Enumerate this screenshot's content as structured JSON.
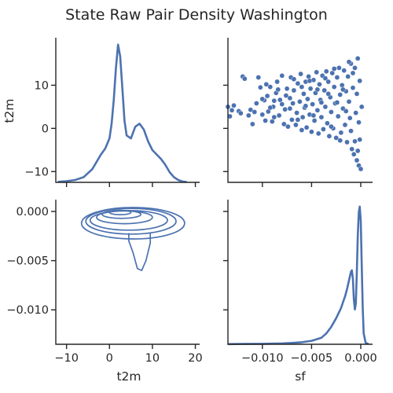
{
  "chart_data": {
    "type": "pairplot",
    "title": "State Raw Pair Density Washington",
    "variables": [
      "t2m",
      "sf"
    ],
    "color": "#4c72b0",
    "x_ticks": {
      "t2m": {
        "values": [
          -10,
          0,
          10,
          20
        ],
        "labels": [
          "−10",
          "0",
          "10",
          "20"
        ]
      },
      "sf": {
        "values": [
          -0.01,
          -0.005,
          0.0
        ],
        "labels": [
          "−0.010",
          "−0.005",
          "0.000"
        ]
      }
    },
    "y_ticks": {
      "t2m": {
        "values": [
          -10,
          0,
          10
        ],
        "labels": [
          "−10",
          "0",
          "10"
        ]
      },
      "sf": {
        "values": [
          -0.01,
          -0.005,
          0.0
        ],
        "labels": [
          "−0.010",
          "−0.005",
          "0.000"
        ]
      }
    },
    "ranges": {
      "t2m": [
        -12.5,
        21.0
      ],
      "sf": [
        -0.0135,
        0.0012
      ]
    },
    "diag_t2m_kde": {
      "x": [
        -12,
        -10,
        -8,
        -6,
        -4,
        -3,
        -2,
        -1,
        0,
        0.5,
        1,
        1.5,
        2,
        2.5,
        3,
        3.5,
        4,
        5,
        6,
        7,
        8,
        9,
        10,
        11,
        12,
        13,
        14,
        15,
        16,
        17,
        18
      ],
      "density": [
        0.002,
        0.004,
        0.008,
        0.018,
        0.045,
        0.07,
        0.095,
        0.115,
        0.15,
        0.2,
        0.28,
        0.39,
        0.47,
        0.43,
        0.32,
        0.21,
        0.16,
        0.15,
        0.19,
        0.2,
        0.18,
        0.14,
        0.11,
        0.095,
        0.08,
        0.06,
        0.035,
        0.018,
        0.008,
        0.003,
        0.001
      ]
    },
    "diag_sf_kde": {
      "x": [
        -0.0135,
        -0.012,
        -0.01,
        -0.008,
        -0.007,
        -0.006,
        -0.005,
        -0.004,
        -0.0035,
        -0.003,
        -0.0025,
        -0.002,
        -0.0018,
        -0.0016,
        -0.0014,
        -0.0012,
        -0.001,
        -0.0009,
        -0.0008,
        -0.0007,
        -0.0006,
        -0.0005,
        -0.0004,
        -0.0003,
        -0.0002,
        -0.0001,
        0.0,
        0.0001,
        0.0002,
        0.0003,
        0.0005,
        0.0008
      ],
      "density": [
        2,
        4,
        7,
        12,
        18,
        28,
        48,
        90,
        150,
        240,
        360,
        500,
        580,
        660,
        760,
        880,
        1000,
        1020,
        900,
        620,
        480,
        560,
        1000,
        1500,
        1820,
        1900,
        1700,
        1100,
        500,
        150,
        20,
        2
      ]
    },
    "scatter_sf_vs_t2m": {
      "points": [
        [
          -0.0135,
          5.0
        ],
        [
          -0.0133,
          2.8
        ],
        [
          -0.0131,
          4.2
        ],
        [
          -0.0129,
          5.3
        ],
        [
          -0.0124,
          4.0
        ],
        [
          -0.0122,
          3.5
        ],
        [
          -0.012,
          12.0
        ],
        [
          -0.0118,
          11.5
        ],
        [
          -0.0114,
          3.0
        ],
        [
          -0.0112,
          4.3
        ],
        [
          -0.011,
          1.0
        ],
        [
          -0.0108,
          3.8
        ],
        [
          -0.0106,
          5.8
        ],
        [
          -0.0104,
          11.8
        ],
        [
          -0.0102,
          9.5
        ],
        [
          -0.01,
          3.2
        ],
        [
          -0.0098,
          6.5
        ],
        [
          -0.0097,
          1.8
        ],
        [
          -0.0095,
          7.5
        ],
        [
          -0.0094,
          3.9
        ],
        [
          -0.0092,
          9.6
        ],
        [
          -0.009,
          1.6
        ],
        [
          -0.0089,
          5.0
        ],
        [
          -0.0088,
          2.6
        ],
        [
          -0.0086,
          8.2
        ],
        [
          -0.0085,
          10.8
        ],
        [
          -0.0083,
          3.0
        ],
        [
          -0.0082,
          6.6
        ],
        [
          -0.008,
          12.2
        ],
        [
          -0.0078,
          1.0
        ],
        [
          -0.0077,
          4.4
        ],
        [
          -0.0075,
          9.2
        ],
        [
          -0.0074,
          0.4
        ],
        [
          -0.0072,
          7.0
        ],
        [
          -0.0071,
          11.8
        ],
        [
          -0.007,
          2.0
        ],
        [
          -0.0069,
          5.8
        ],
        [
          -0.0068,
          8.8
        ],
        [
          -0.0066,
          0.8
        ],
        [
          -0.0065,
          3.6
        ],
        [
          -0.0064,
          10.4
        ],
        [
          -0.0062,
          6.2
        ],
        [
          -0.0061,
          12.6
        ],
        [
          -0.006,
          -0.4
        ],
        [
          -0.0059,
          2.6
        ],
        [
          -0.0058,
          8.0
        ],
        [
          -0.0057,
          4.8
        ],
        [
          -0.0056,
          10.8
        ],
        [
          -0.0055,
          0.2
        ],
        [
          -0.0054,
          6.8
        ],
        [
          -0.0053,
          12.0
        ],
        [
          -0.0052,
          3.2
        ],
        [
          -0.0051,
          9.2
        ],
        [
          -0.005,
          -0.8
        ],
        [
          -0.0049,
          5.6
        ],
        [
          -0.0048,
          11.2
        ],
        [
          -0.0047,
          1.8
        ],
        [
          -0.0046,
          8.2
        ],
        [
          -0.0045,
          13.0
        ],
        [
          -0.0044,
          4.2
        ],
        [
          -0.0043,
          -1.2
        ],
        [
          -0.0042,
          10.2
        ],
        [
          -0.0041,
          6.6
        ],
        [
          -0.004,
          2.6
        ],
        [
          -0.0039,
          12.2
        ],
        [
          -0.0038,
          -0.2
        ],
        [
          -0.0037,
          8.8
        ],
        [
          -0.0036,
          5.0
        ],
        [
          -0.0035,
          13.2
        ],
        [
          -0.0034,
          1.2
        ],
        [
          -0.0033,
          10.8
        ],
        [
          -0.0032,
          -1.8
        ],
        [
          -0.0031,
          7.2
        ],
        [
          -0.003,
          3.8
        ],
        [
          -0.0029,
          12.8
        ],
        [
          -0.0028,
          0.0
        ],
        [
          -0.0027,
          9.6
        ],
        [
          -0.0026,
          5.8
        ],
        [
          -0.0025,
          -2.2
        ],
        [
          -0.0024,
          11.8
        ],
        [
          -0.0023,
          2.8
        ],
        [
          -0.0022,
          14.0
        ],
        [
          -0.0021,
          7.8
        ],
        [
          -0.002,
          -1.0
        ],
        [
          -0.0019,
          10.0
        ],
        [
          -0.0018,
          4.6
        ],
        [
          -0.0017,
          13.4
        ],
        [
          -0.0016,
          0.8
        ],
        [
          -0.0015,
          8.6
        ],
        [
          -0.0014,
          -3.2
        ],
        [
          -0.0013,
          12.0
        ],
        [
          -0.0012,
          6.2
        ],
        [
          -0.0011,
          2.4
        ],
        [
          -0.001,
          15.0
        ],
        [
          -0.0009,
          -4.8
        ],
        [
          -0.0008,
          9.4
        ],
        [
          -0.0007,
          -6.0
        ],
        [
          -0.0006,
          14.0
        ],
        [
          -0.0005,
          3.6
        ],
        [
          -0.0004,
          -7.4
        ],
        [
          -0.0003,
          16.2
        ],
        [
          -0.0002,
          -8.6
        ],
        [
          -0.0001,
          11.0
        ],
        [
          0.0,
          -9.4
        ],
        [
          0.0001,
          5.0
        ],
        [
          -0.0003,
          -5.2
        ],
        [
          -0.0001,
          -2.6
        ],
        [
          -0.0002,
          1.4
        ],
        [
          -0.0004,
          8.0
        ],
        [
          -0.0006,
          -3.0
        ],
        [
          -0.0008,
          12.8
        ],
        [
          -0.001,
          -0.6
        ],
        [
          -0.0012,
          15.4
        ],
        [
          -0.0015,
          4.0
        ],
        [
          -0.0018,
          9.0
        ],
        [
          -0.0021,
          -2.8
        ],
        [
          -0.0024,
          6.0
        ],
        [
          -0.0027,
          13.8
        ],
        [
          -0.003,
          0.4
        ],
        [
          -0.0033,
          8.0
        ],
        [
          -0.0036,
          11.6
        ],
        [
          -0.004,
          6.0
        ],
        [
          -0.0044,
          9.0
        ],
        [
          -0.0048,
          3.0
        ],
        [
          -0.0052,
          11.0
        ],
        [
          -0.0056,
          5.2
        ],
        [
          -0.006,
          9.6
        ],
        [
          -0.0064,
          2.0
        ],
        [
          -0.0068,
          11.4
        ],
        [
          -0.0072,
          4.6
        ],
        [
          -0.0076,
          7.6
        ],
        [
          -0.008,
          5.6
        ],
        [
          -0.0084,
          9.0
        ],
        [
          -0.0088,
          6.4
        ],
        [
          -0.0092,
          4.8
        ],
        [
          -0.0096,
          10.2
        ],
        [
          -0.01,
          6.8
        ]
      ]
    },
    "contour_t2m_vs_sf": {
      "levels": [
        {
          "cx": 2.5,
          "cy": -0.0001,
          "rx": 2.5,
          "ry": 0.00022
        },
        {
          "cx": 2.8,
          "cy": -0.0003,
          "rx": 4.5,
          "ry": 0.0004
        },
        {
          "cx": 3.5,
          "cy": -0.0006,
          "rx": 6.5,
          "ry": 0.00065
        },
        {
          "cx": 4.5,
          "cy": -0.0009,
          "rx": 9.0,
          "ry": 0.001
        },
        {
          "cx": 5.0,
          "cy": -0.001,
          "rx": 10.5,
          "ry": 0.0013
        },
        {
          "cx": 5.5,
          "cy": -0.0012,
          "rx": 12.0,
          "ry": 0.0016
        }
      ],
      "tail": {
        "x": [
          4.5,
          5.5,
          6.5,
          7.5,
          8.5,
          9.5
        ],
        "y_bottom": [
          -0.003,
          -0.0042,
          -0.0058,
          -0.006,
          -0.005,
          -0.0032
        ]
      }
    },
    "diag_legend": "none"
  }
}
